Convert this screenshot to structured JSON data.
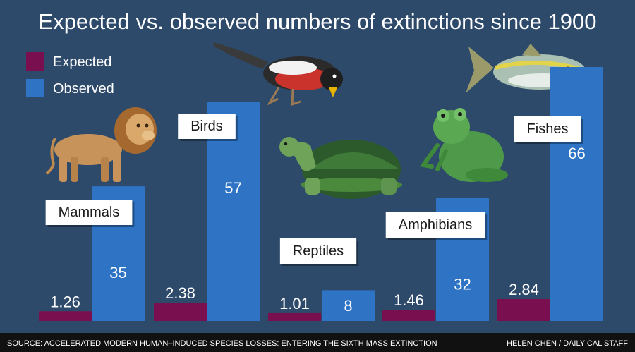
{
  "colors": {
    "background": "#2e4a6b",
    "expected": "#7a0f4f",
    "observed": "#2e73c4",
    "footer": "#111111"
  },
  "chart_data": {
    "type": "bar",
    "title": "Expected vs. observed numbers of extinctions since 1900",
    "legend": "top-left",
    "categories": [
      "Mammals",
      "Birds",
      "Reptiles",
      "Amphibians",
      "Fishes"
    ],
    "series": [
      {
        "name": "Expected",
        "values": [
          1.26,
          2.38,
          1.01,
          1.46,
          2.84
        ]
      },
      {
        "name": "Observed",
        "values": [
          35,
          57,
          8,
          32,
          66
        ]
      }
    ],
    "ylim": [
      0,
      66
    ],
    "grid": false
  },
  "footer": {
    "source": "SOURCE: ACCELERATED MODERN HUMAN–INDUCED SPECIES LOSSES: ENTERING THE SIXTH MASS EXTINCTION",
    "credit": "HELEN CHEN / DAILY CAL STAFF"
  },
  "icons": [
    "lion-icon",
    "bird-icon",
    "tortoise-icon",
    "frog-icon",
    "fish-icon"
  ]
}
